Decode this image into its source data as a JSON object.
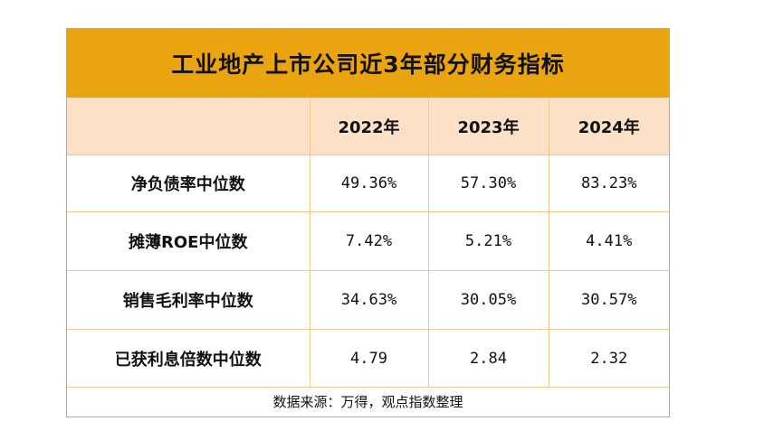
{
  "title": "工业地产上市公司近3年部分财务指标",
  "columns": [
    "",
    "2022年",
    "2023年",
    "2024年"
  ],
  "rows": [
    {
      "label": "净负债率中位数",
      "values": [
        "49.36%",
        "57.30%",
        "83.23%"
      ]
    },
    {
      "label": "摊薄ROE中位数",
      "values": [
        "7.42%",
        "5.21%",
        "4.41%"
      ]
    },
    {
      "label": "销售毛利率中位数",
      "values": [
        "34.63%",
        "30.05%",
        "30.57%"
      ]
    },
    {
      "label": "已获利息倍数中位数",
      "values": [
        "4.79",
        "2.84",
        "2.32"
      ]
    }
  ],
  "source": "数据来源：万得，观点指数整理",
  "colors": {
    "title_bg": "#eaa40f",
    "header_bg": "#fce1c8",
    "border": "#f0c98a"
  }
}
